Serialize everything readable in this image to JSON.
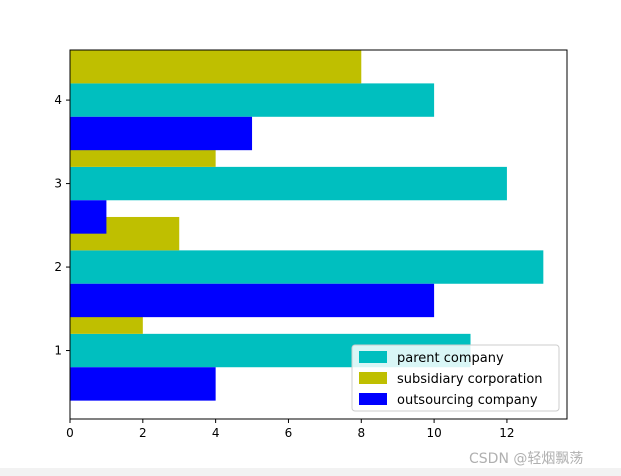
{
  "chart_data": {
    "type": "bar",
    "orientation": "horizontal",
    "categories": [
      "1",
      "2",
      "3",
      "4"
    ],
    "y_ticks": [
      "1",
      "2",
      "3",
      "4"
    ],
    "x_ticks": [
      "0",
      "2",
      "4",
      "6",
      "8",
      "10",
      "12"
    ],
    "xlim": [
      0,
      13.65
    ],
    "ylim": [
      0.18,
      4.6
    ],
    "grid": false,
    "legend_position": "lower-right",
    "series": [
      {
        "name": "parent company",
        "color": "#00bfbf",
        "values": [
          11,
          13,
          12,
          10
        ]
      },
      {
        "name": "subsidiary corporation",
        "color": "#bfbf00",
        "values": [
          2,
          3,
          4,
          8
        ]
      },
      {
        "name": "outsourcing company",
        "color": "#0000ff",
        "values": [
          4,
          10,
          1,
          5
        ]
      }
    ],
    "title": "",
    "xlabel": "",
    "ylabel": ""
  },
  "watermark": "CSDN @轻烟飘荡"
}
